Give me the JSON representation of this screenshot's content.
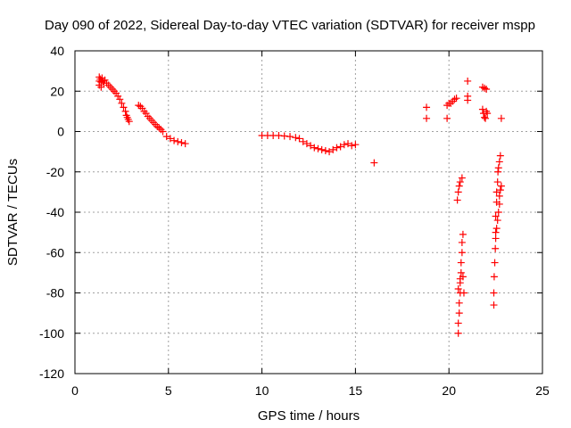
{
  "chart_data": {
    "type": "scatter",
    "title": "Day 090 of 2022, Sidereal Day-to-day VTEC variation (SDTVAR) for receiver mspp",
    "xlabel": "GPS time / hours",
    "ylabel": "SDTVAR / TECUs",
    "xlim": [
      0,
      25
    ],
    "ylim": [
      -120,
      40
    ],
    "xticks": [
      0,
      5,
      10,
      15,
      20,
      25
    ],
    "yticks": [
      -120,
      -100,
      -80,
      -60,
      -40,
      -20,
      0,
      20,
      40
    ],
    "grid": true,
    "marker": "+",
    "colors": {
      "series": "#ff0000",
      "axis": "#000000",
      "grid": "#a0a0a0"
    },
    "series": [
      {
        "name": "SDTVAR",
        "points": [
          [
            1.3,
            27
          ],
          [
            1.3,
            25
          ],
          [
            1.3,
            23
          ],
          [
            1.35,
            26
          ],
          [
            1.4,
            22
          ],
          [
            1.4,
            24.5
          ],
          [
            1.45,
            26.5
          ],
          [
            1.5,
            25
          ],
          [
            1.55,
            24
          ],
          [
            1.6,
            25.5
          ],
          [
            1.7,
            24
          ],
          [
            1.8,
            23
          ],
          [
            1.9,
            22
          ],
          [
            2.0,
            21
          ],
          [
            2.1,
            20
          ],
          [
            2.2,
            19
          ],
          [
            2.3,
            17.5
          ],
          [
            2.4,
            16
          ],
          [
            2.5,
            14
          ],
          [
            2.6,
            12
          ],
          [
            2.7,
            10
          ],
          [
            2.75,
            8
          ],
          [
            2.8,
            7
          ],
          [
            2.85,
            6
          ],
          [
            2.9,
            5
          ],
          [
            3.4,
            13
          ],
          [
            3.5,
            12.5
          ],
          [
            3.6,
            11.5
          ],
          [
            3.7,
            10
          ],
          [
            3.8,
            9
          ],
          [
            3.9,
            7.5
          ],
          [
            4.0,
            6.5
          ],
          [
            4.1,
            5.5
          ],
          [
            4.2,
            4.5
          ],
          [
            4.3,
            3.5
          ],
          [
            4.4,
            2.5
          ],
          [
            4.5,
            1.8
          ],
          [
            4.6,
            1
          ],
          [
            4.7,
            0
          ],
          [
            4.9,
            -2.5
          ],
          [
            5.1,
            -3.5
          ],
          [
            5.3,
            -4.5
          ],
          [
            5.5,
            -5
          ],
          [
            5.7,
            -5.5
          ],
          [
            5.9,
            -6
          ],
          [
            10.0,
            -2
          ],
          [
            10.3,
            -2
          ],
          [
            10.6,
            -2
          ],
          [
            10.9,
            -2
          ],
          [
            11.2,
            -2.2
          ],
          [
            11.5,
            -2.5
          ],
          [
            11.8,
            -3
          ],
          [
            12.0,
            -3.5
          ],
          [
            12.2,
            -5
          ],
          [
            12.4,
            -6
          ],
          [
            12.6,
            -7
          ],
          [
            12.8,
            -8
          ],
          [
            13.0,
            -8.5
          ],
          [
            13.2,
            -9
          ],
          [
            13.4,
            -9.5
          ],
          [
            13.6,
            -10
          ],
          [
            13.8,
            -9
          ],
          [
            14.0,
            -8
          ],
          [
            14.2,
            -7.5
          ],
          [
            14.4,
            -6.5
          ],
          [
            14.6,
            -6
          ],
          [
            14.8,
            -7
          ],
          [
            15.0,
            -6.5
          ],
          [
            16.0,
            -15.5
          ],
          [
            18.8,
            12
          ],
          [
            18.8,
            6.5
          ],
          [
            19.9,
            6.5
          ],
          [
            19.9,
            13
          ],
          [
            20.0,
            14
          ],
          [
            20.1,
            14
          ],
          [
            20.2,
            15
          ],
          [
            20.3,
            16
          ],
          [
            20.4,
            16.5
          ],
          [
            20.45,
            -34
          ],
          [
            20.5,
            -30
          ],
          [
            20.55,
            -27
          ],
          [
            20.6,
            -25
          ],
          [
            20.7,
            -23
          ],
          [
            20.5,
            -100
          ],
          [
            20.5,
            -95
          ],
          [
            20.55,
            -90
          ],
          [
            20.55,
            -85
          ],
          [
            20.6,
            -80
          ],
          [
            20.6,
            -75
          ],
          [
            20.65,
            -70
          ],
          [
            20.65,
            -65
          ],
          [
            20.7,
            -60
          ],
          [
            20.7,
            -55
          ],
          [
            20.75,
            -51
          ],
          [
            20.5,
            -78
          ],
          [
            20.6,
            -73
          ],
          [
            20.75,
            -72
          ],
          [
            20.8,
            -80
          ],
          [
            21.0,
            25
          ],
          [
            21.0,
            17.5
          ],
          [
            21.0,
            15.5
          ],
          [
            21.8,
            22
          ],
          [
            21.9,
            21.5
          ],
          [
            22.0,
            21
          ],
          [
            21.8,
            11
          ],
          [
            21.85,
            9
          ],
          [
            21.9,
            7
          ],
          [
            21.95,
            6.5
          ],
          [
            22.0,
            10
          ],
          [
            22.05,
            9
          ],
          [
            22.4,
            -86
          ],
          [
            22.4,
            -80
          ],
          [
            22.42,
            -72
          ],
          [
            22.45,
            -65
          ],
          [
            22.48,
            -58
          ],
          [
            22.5,
            -50
          ],
          [
            22.5,
            -42
          ],
          [
            22.55,
            -35
          ],
          [
            22.55,
            -30
          ],
          [
            22.6,
            -25
          ],
          [
            22.62,
            -20
          ],
          [
            22.65,
            -18
          ],
          [
            22.7,
            -15
          ],
          [
            22.75,
            -12
          ],
          [
            22.5,
            -53
          ],
          [
            22.55,
            -48
          ],
          [
            22.6,
            -44
          ],
          [
            22.65,
            -40
          ],
          [
            22.7,
            -36
          ],
          [
            22.7,
            -32
          ],
          [
            22.75,
            -29
          ],
          [
            22.8,
            -27
          ],
          [
            22.8,
            6.5
          ]
        ]
      }
    ]
  }
}
